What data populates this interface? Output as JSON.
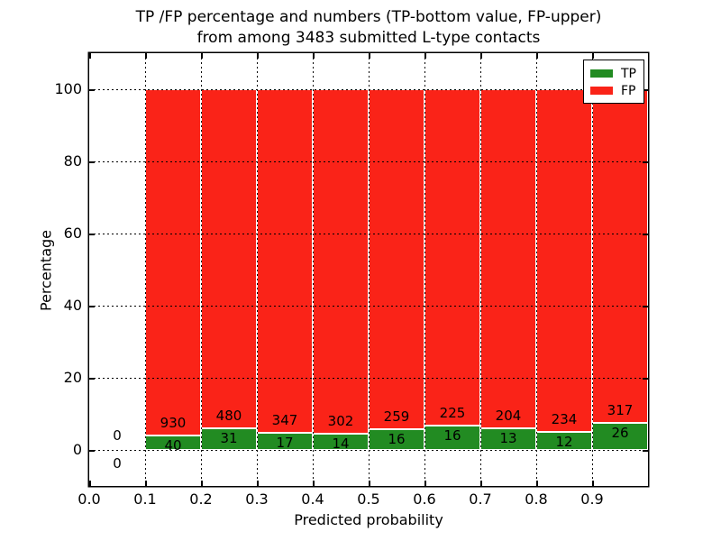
{
  "chart_data": {
    "type": "bar",
    "variant": "stacked-percentage",
    "title_lines": [
      "TP /FP percentage and numbers (TP-bottom value, FP-upper)",
      "from among 3483 submitted L-type contacts"
    ],
    "xlabel": "Predicted probability",
    "ylabel": "Percentage",
    "total_submitted": 3483,
    "xlim": [
      0.0,
      1.0
    ],
    "ylim": [
      -10,
      110
    ],
    "x_tick_labels": [
      "0.0",
      "0.1",
      "0.2",
      "0.3",
      "0.4",
      "0.5",
      "0.6",
      "0.7",
      "0.8",
      "0.9"
    ],
    "y_tick_labels": [
      "0",
      "20",
      "40",
      "60",
      "80",
      "100"
    ],
    "grid": {
      "style": "dotted",
      "color": "#000000",
      "over_bars": true
    },
    "bar_width": 0.1,
    "colors": {
      "tp": "#228b22",
      "fp": "#fa2318",
      "bar_edge": "#ffffff"
    },
    "legend": {
      "position": "upper-right",
      "entries": [
        {
          "label": "TP",
          "color": "#228b22"
        },
        {
          "label": "FP",
          "color": "#fa2318"
        }
      ]
    },
    "bins": [
      {
        "range": [
          0.0,
          0.1
        ],
        "tp": 0,
        "fp": 0,
        "tp_pct": 0
      },
      {
        "range": [
          0.1,
          0.2
        ],
        "tp": 40,
        "fp": 930,
        "tp_pct": 4.1
      },
      {
        "range": [
          0.2,
          0.3
        ],
        "tp": 31,
        "fp": 480,
        "tp_pct": 6.1
      },
      {
        "range": [
          0.3,
          0.4
        ],
        "tp": 17,
        "fp": 347,
        "tp_pct": 4.7
      },
      {
        "range": [
          0.4,
          0.5
        ],
        "tp": 14,
        "fp": 302,
        "tp_pct": 4.4
      },
      {
        "range": [
          0.5,
          0.6
        ],
        "tp": 16,
        "fp": 259,
        "tp_pct": 5.8
      },
      {
        "range": [
          0.6,
          0.7
        ],
        "tp": 16,
        "fp": 225,
        "tp_pct": 6.6
      },
      {
        "range": [
          0.7,
          0.8
        ],
        "tp": 13,
        "fp": 204,
        "tp_pct": 6.0
      },
      {
        "range": [
          0.8,
          0.9
        ],
        "tp": 12,
        "fp": 234,
        "tp_pct": 4.9
      },
      {
        "range": [
          0.9,
          1.0
        ],
        "tp": 26,
        "fp": 317,
        "tp_pct": 7.6
      }
    ]
  }
}
